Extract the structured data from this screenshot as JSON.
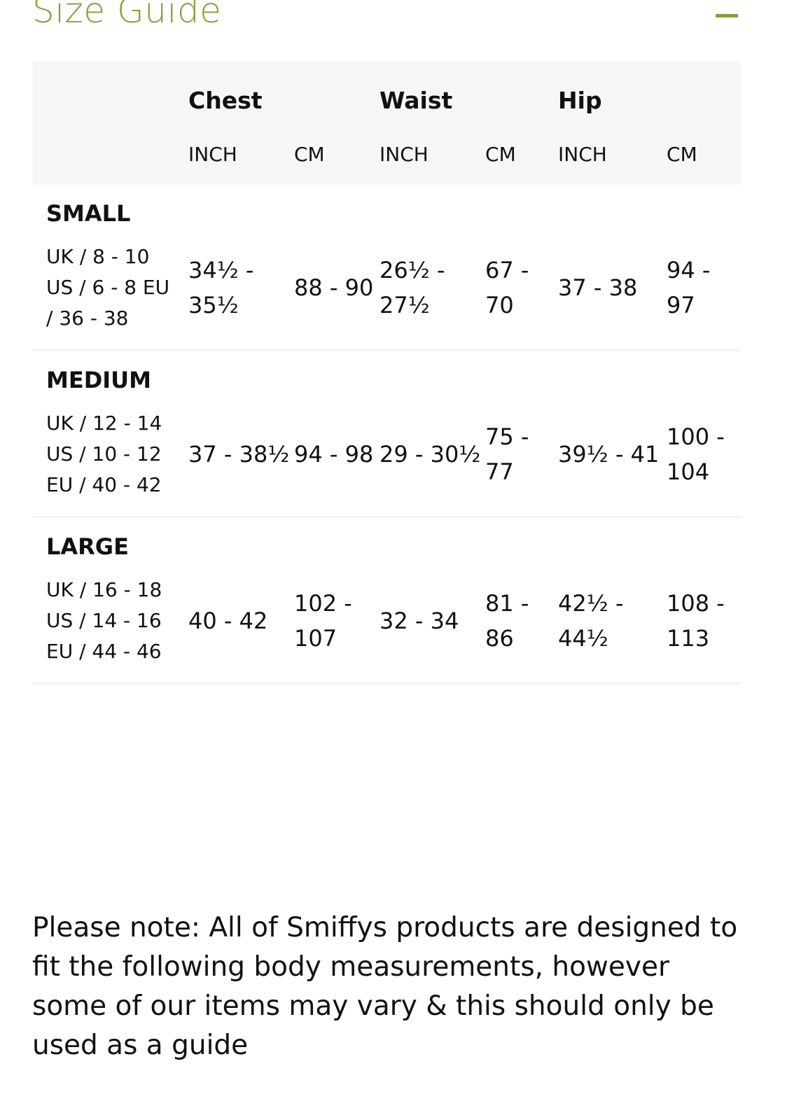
{
  "header": {
    "title": "Size Guide",
    "collapse_icon": "minus-icon",
    "accent_color": "#80a337"
  },
  "table": {
    "groups": [
      "Chest",
      "Waist",
      "Hip"
    ],
    "units": [
      "INCH",
      "CM",
      "INCH",
      "CM",
      "INCH",
      "CM"
    ],
    "rows": [
      {
        "size": "SMALL",
        "label": "UK / 8 - 10 US / 6 - 8 EU / 36 - 38",
        "values": [
          "34½ - 35½",
          "88 - 90",
          "26½ - 27½",
          "67 - 70",
          "37 - 38",
          "94 - 97"
        ]
      },
      {
        "size": "MEDIUM",
        "label": "UK / 12 - 14 US / 10 - 12 EU / 40 - 42",
        "values": [
          "37 - 38½",
          "94 - 98",
          "29 - 30½",
          "75 - 77",
          "39½ - 41",
          "100 - 104"
        ]
      },
      {
        "size": "LARGE",
        "label": "UK / 16 - 18 US / 14 - 16 EU / 44 - 46",
        "values": [
          "40 - 42",
          "102 - 107",
          "32 - 34",
          "81 - 86",
          "42½ - 44½",
          "108 - 113"
        ]
      }
    ]
  },
  "note": "Please note: All of Smiffys products are designed to fit the following body measurements, however some of our items may vary & this should only be used as a guide"
}
